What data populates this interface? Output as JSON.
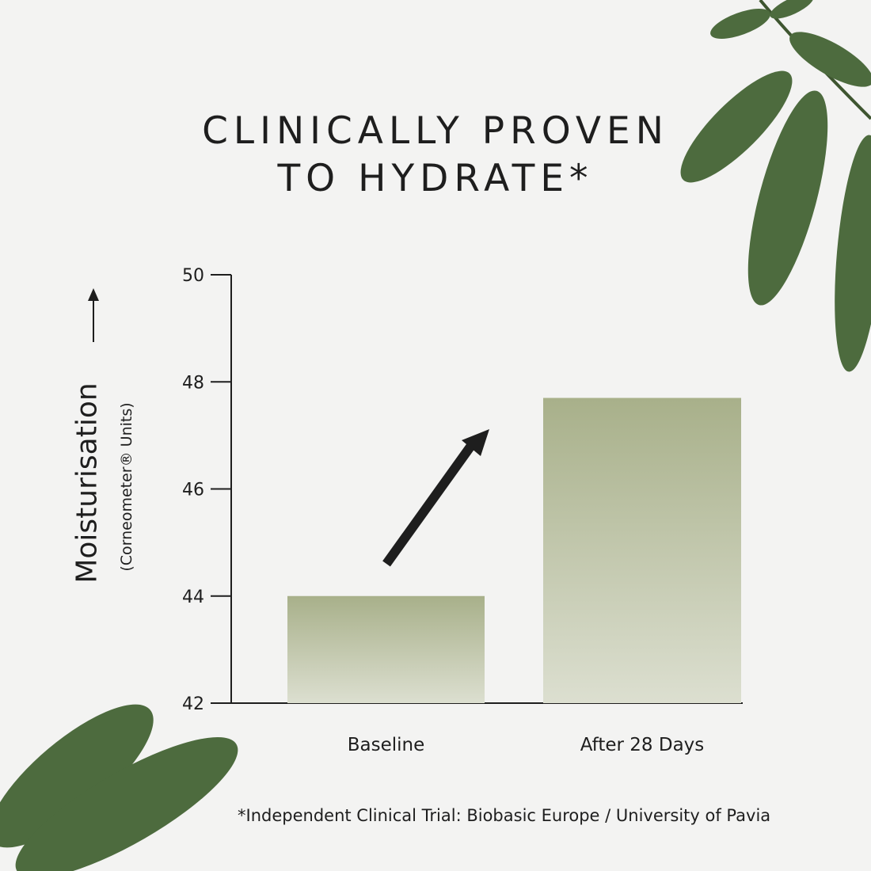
{
  "title_lines": [
    "CLINICALLY PROVEN",
    "TO HYDRATE*"
  ],
  "footnote": "*Independent Clinical Trial: Biobasic Europe / University of Pavia",
  "colors": {
    "bar_top": "#a8b08a",
    "bar_bottom": "#dcdfd0",
    "axis": "#1e1e1e",
    "leaf": "#4d6b3e"
  },
  "chart_data": {
    "type": "bar",
    "categories": [
      "Baseline",
      "After 28 Days"
    ],
    "values": [
      44.0,
      47.7
    ],
    "ylabel": "Moisturisation",
    "ylabel_sub": "(Corneometer® Units)",
    "ylim": [
      42,
      50
    ],
    "yticks": [
      42,
      44,
      46,
      48,
      50
    ],
    "grid": false,
    "annotation": "upward trend arrow"
  }
}
